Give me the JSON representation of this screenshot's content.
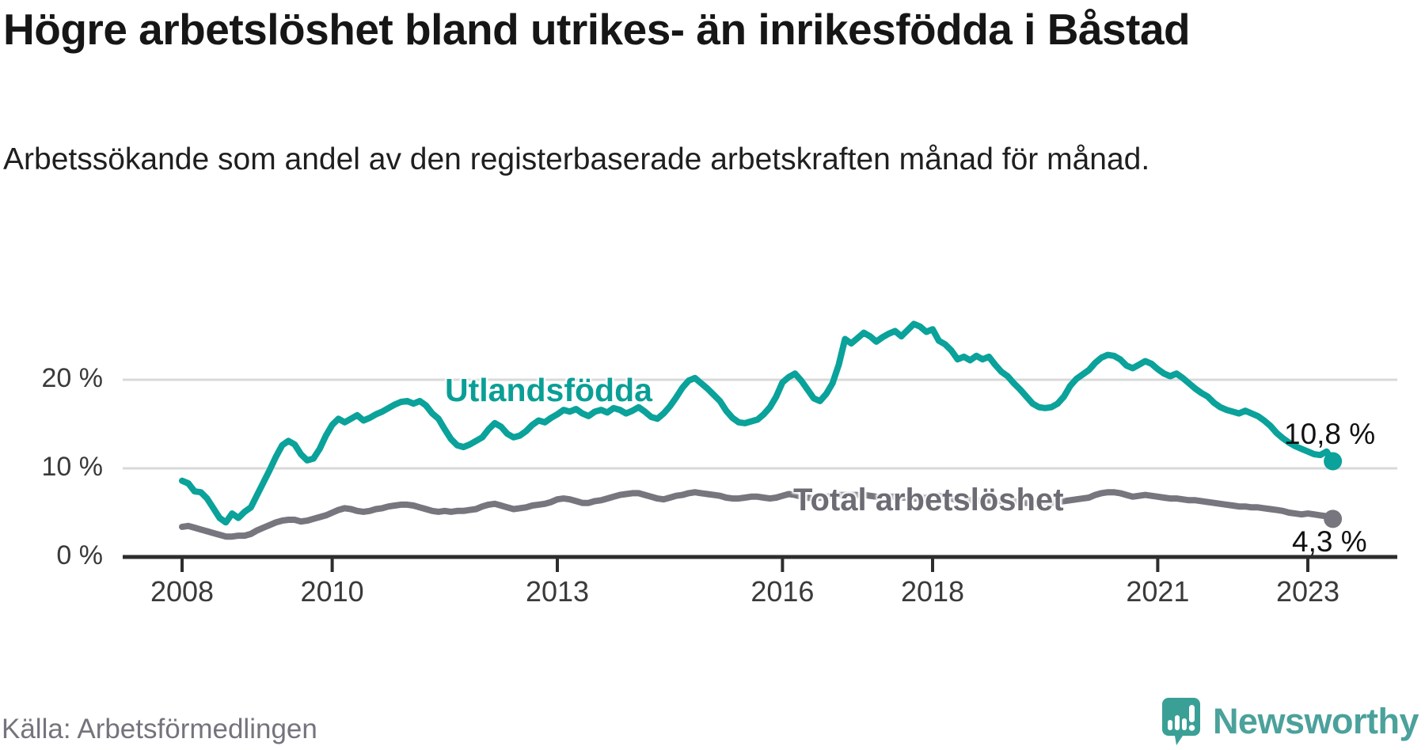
{
  "header": {
    "title": "Högre arbetslöshet bland utrikes- än inrikesfödda i Båstad",
    "subtitle": "Arbetssökande som andel av den registerbaserade arbetskraften månad för månad."
  },
  "footer": {
    "source": "Källa: Arbetsförmedlingen",
    "brand_name": "Newsworthy"
  },
  "colors": {
    "background": "#ffffff",
    "title_text": "#161616",
    "axis": "#2d2d2d",
    "gridline": "#d9d9d9",
    "tick_label": "#3a3a3a",
    "teal_series": "#0aa29a",
    "gray_series": "#77767e",
    "teal_label": "#0a9f96",
    "gray_label": "#6d6c74",
    "end_label_text": "#111111",
    "source_text": "#75747d",
    "brand_teal": "#3aa096"
  },
  "chart_data": {
    "type": "line",
    "title": "Högre arbetslöshet bland utrikes- än inrikesfödda i Båstad",
    "subtitle": "Arbetssökande som andel av den registerbaserade arbetskraften månad för månad.",
    "x_unit": "month",
    "x_range": [
      "2008-01",
      "2023-05"
    ],
    "ylim": [
      0,
      28
    ],
    "grid": "horizontal",
    "y_ticks": [
      0,
      10,
      20
    ],
    "y_tick_labels": [
      "0 %",
      "10 %",
      "20 %"
    ],
    "x_tick_years": [
      2008,
      2010,
      2013,
      2016,
      2018,
      2021,
      2023
    ],
    "x_tick_labels": [
      "2008",
      "2010",
      "2013",
      "2016",
      "2018",
      "2021",
      "2023"
    ],
    "x_tick_month_index": [
      0,
      24,
      60,
      96,
      120,
      156,
      180
    ],
    "series": [
      {
        "name": "Utlandsfödda",
        "color": "#0aa29a",
        "end_label": "10,8 %",
        "end_value": 10.8,
        "values": [
          8.6,
          8.3,
          7.4,
          7.3,
          6.6,
          5.5,
          4.4,
          3.9,
          4.9,
          4.4,
          5.1,
          5.6,
          7.0,
          8.4,
          9.8,
          11.3,
          12.6,
          13.1,
          12.7,
          11.6,
          10.9,
          11.1,
          12.2,
          13.7,
          14.9,
          15.6,
          15.2,
          15.6,
          16.0,
          15.4,
          15.7,
          16.1,
          16.4,
          16.8,
          17.2,
          17.5,
          17.6,
          17.3,
          17.6,
          17.1,
          16.2,
          15.6,
          14.4,
          13.3,
          12.6,
          12.4,
          12.7,
          13.1,
          13.5,
          14.4,
          15.1,
          14.7,
          13.9,
          13.5,
          13.7,
          14.2,
          14.9,
          15.4,
          15.2,
          15.7,
          16.1,
          16.6,
          16.4,
          16.7,
          16.2,
          15.9,
          16.4,
          16.6,
          16.3,
          16.8,
          16.6,
          16.2,
          16.5,
          16.9,
          16.4,
          15.8,
          15.6,
          16.2,
          17.0,
          18.0,
          19.1,
          19.9,
          20.2,
          19.6,
          19.0,
          18.3,
          17.6,
          16.5,
          15.7,
          15.2,
          15.1,
          15.3,
          15.5,
          16.1,
          16.9,
          18.1,
          19.7,
          20.3,
          20.7,
          19.9,
          18.9,
          17.9,
          17.6,
          18.4,
          19.6,
          21.7,
          24.6,
          24.1,
          24.7,
          25.3,
          24.9,
          24.3,
          24.8,
          25.2,
          25.5,
          24.9,
          25.6,
          26.3,
          26.0,
          25.4,
          25.7,
          24.4,
          24.0,
          23.3,
          22.3,
          22.6,
          22.2,
          22.7,
          22.3,
          22.6,
          21.7,
          20.9,
          20.4,
          19.6,
          18.9,
          18.1,
          17.3,
          16.9,
          16.8,
          16.9,
          17.3,
          18.1,
          19.3,
          20.1,
          20.6,
          21.1,
          21.9,
          22.5,
          22.8,
          22.7,
          22.3,
          21.6,
          21.3,
          21.7,
          22.1,
          21.8,
          21.2,
          20.7,
          20.4,
          20.7,
          20.2,
          19.6,
          19.0,
          18.5,
          18.1,
          17.4,
          16.9,
          16.6,
          16.4,
          16.2,
          16.5,
          16.2,
          15.9,
          15.4,
          14.8,
          14.0,
          13.4,
          12.9,
          12.5,
          12.2,
          11.9,
          11.6,
          11.5,
          11.9,
          10.8
        ]
      },
      {
        "name": "Total arbetslöshet",
        "color": "#77767e",
        "end_label": "4,3 %",
        "end_value": 4.3,
        "values": [
          3.4,
          3.5,
          3.3,
          3.1,
          2.9,
          2.7,
          2.5,
          2.3,
          2.3,
          2.4,
          2.4,
          2.6,
          3.0,
          3.3,
          3.6,
          3.9,
          4.1,
          4.2,
          4.2,
          4.0,
          4.1,
          4.3,
          4.5,
          4.7,
          5.0,
          5.3,
          5.5,
          5.4,
          5.2,
          5.1,
          5.2,
          5.4,
          5.5,
          5.7,
          5.8,
          5.9,
          5.9,
          5.8,
          5.6,
          5.4,
          5.2,
          5.1,
          5.2,
          5.1,
          5.2,
          5.2,
          5.3,
          5.4,
          5.7,
          5.9,
          6.0,
          5.8,
          5.6,
          5.4,
          5.5,
          5.6,
          5.8,
          5.9,
          6.0,
          6.2,
          6.5,
          6.6,
          6.5,
          6.3,
          6.1,
          6.1,
          6.3,
          6.4,
          6.6,
          6.8,
          7.0,
          7.1,
          7.2,
          7.2,
          7.0,
          6.8,
          6.6,
          6.5,
          6.7,
          6.9,
          7.0,
          7.2,
          7.3,
          7.2,
          7.1,
          7.0,
          6.9,
          6.7,
          6.6,
          6.6,
          6.7,
          6.8,
          6.8,
          6.7,
          6.6,
          6.7,
          6.9,
          7.1,
          7.0,
          6.8,
          6.7,
          6.6,
          6.7,
          6.8,
          6.9,
          7.0,
          7.0,
          7.0,
          7.0,
          7.0,
          6.9,
          6.8,
          6.7,
          6.8,
          6.8,
          6.7,
          6.7,
          6.6,
          6.6,
          6.7,
          6.8,
          6.9,
          6.8,
          6.6,
          6.4,
          6.3,
          6.4,
          6.4,
          6.3,
          6.4,
          6.3,
          6.3,
          6.4,
          6.3,
          6.2,
          6.1,
          6.0,
          6.0,
          6.1,
          6.1,
          6.2,
          6.3,
          6.4,
          6.5,
          6.6,
          6.7,
          7.0,
          7.2,
          7.3,
          7.3,
          7.2,
          7.0,
          6.8,
          6.9,
          7.0,
          6.9,
          6.8,
          6.7,
          6.6,
          6.6,
          6.5,
          6.4,
          6.4,
          6.3,
          6.2,
          6.1,
          6.0,
          5.9,
          5.8,
          5.7,
          5.7,
          5.6,
          5.6,
          5.5,
          5.4,
          5.3,
          5.2,
          5.0,
          4.9,
          4.8,
          4.9,
          4.8,
          4.7,
          4.6,
          4.3
        ]
      }
    ],
    "legend_position": "inline-labels"
  }
}
